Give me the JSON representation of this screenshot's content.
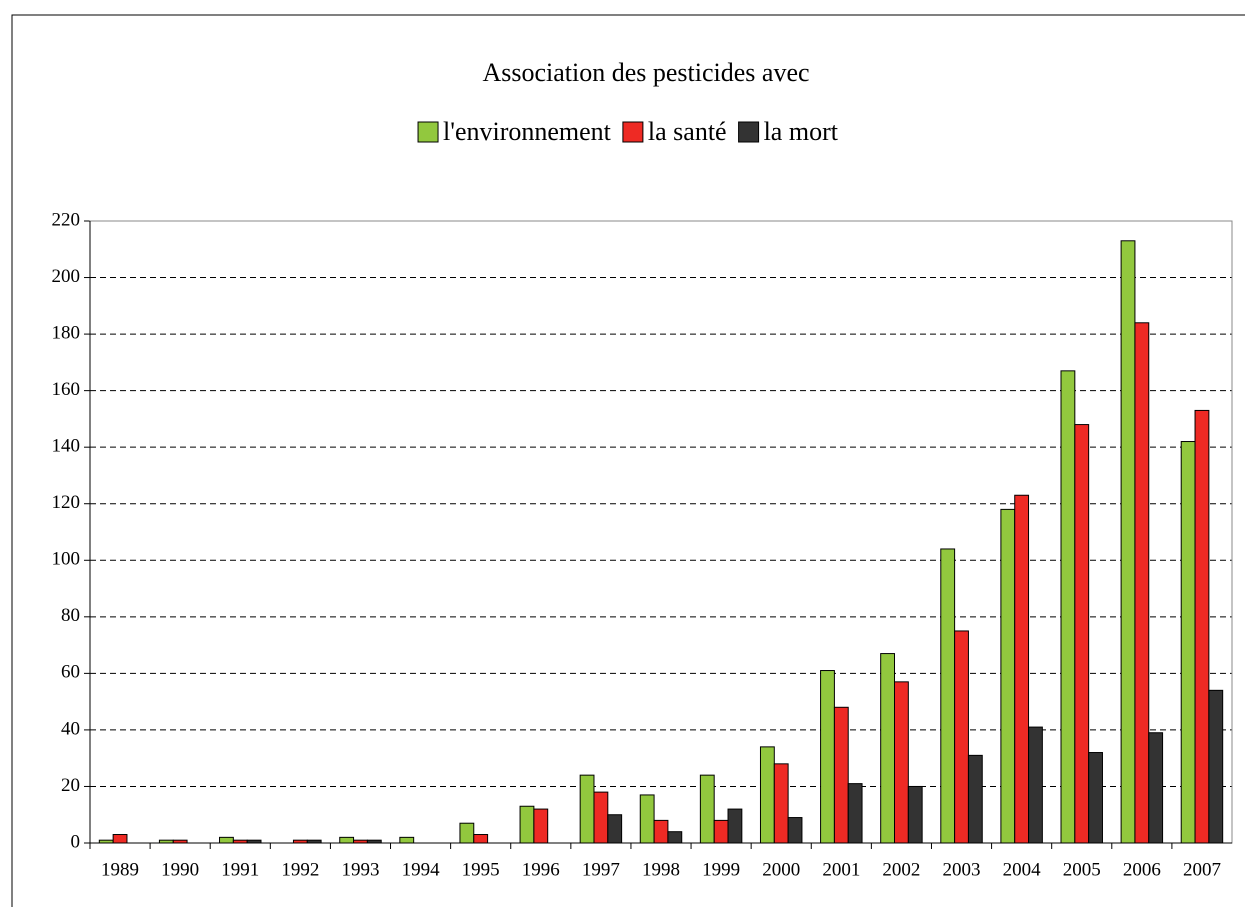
{
  "chart_data": {
    "type": "bar",
    "title": "Association des pesticides avec",
    "categories": [
      "1989",
      "1990",
      "1991",
      "1992",
      "1993",
      "1994",
      "1995",
      "1996",
      "1997",
      "1998",
      "1999",
      "2000",
      "2001",
      "2002",
      "2003",
      "2004",
      "2005",
      "2006",
      "2007"
    ],
    "series": [
      {
        "name": "l'environnement",
        "color": "#92c83e",
        "values": [
          1,
          1,
          2,
          0,
          2,
          2,
          7,
          13,
          24,
          17,
          24,
          34,
          61,
          67,
          104,
          118,
          167,
          213,
          142
        ]
      },
      {
        "name": "la santé",
        "color": "#ee2a24",
        "values": [
          3,
          1,
          1,
          1,
          1,
          0,
          3,
          12,
          18,
          8,
          8,
          28,
          48,
          57,
          75,
          123,
          148,
          184,
          153
        ]
      },
      {
        "name": "la mort",
        "color": "#333333",
        "values": [
          0,
          0,
          1,
          1,
          1,
          0,
          0,
          0,
          10,
          4,
          12,
          9,
          21,
          20,
          31,
          41,
          32,
          39,
          54
        ]
      }
    ],
    "ylim": [
      0,
      220
    ],
    "yticks": [
      0,
      20,
      40,
      60,
      80,
      100,
      120,
      140,
      160,
      180,
      200,
      220
    ],
    "grid": true,
    "legend": "top"
  }
}
